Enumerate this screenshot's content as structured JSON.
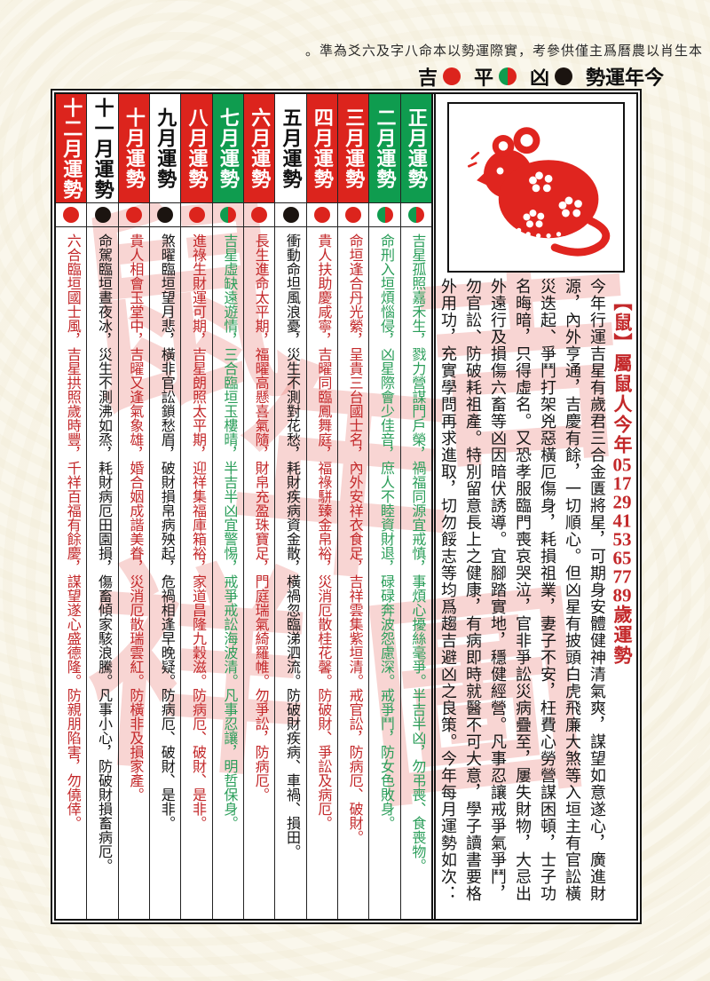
{
  "header": {
    "note": "。準為爻六及字八命本以勢運際實，考參供僅主爲曆農以肖生本",
    "legend": {
      "ji_label": "吉",
      "ping_label": "平",
      "xiong_label": "凶",
      "title": "勢運年今"
    }
  },
  "panel": {
    "title_parts": [
      "【鼠】屬鼠人今年",
      "05",
      "17",
      "29",
      "41",
      "53",
      "65",
      "77",
      "89",
      "歲運勢"
    ],
    "rat_image": "red-papercut-rat",
    "intro": "今年行運吉星有歲君三合金匱將星，可期身安體健神清氣爽，謀望如意遂心，廣進財源，內外亨通，吉慶有餘，一切順心。但凶星有披頭白虎飛廉大煞等入垣主有官訟橫災迭起、爭鬥打架兇惡橫厄傷身，耗損祖業，妻子不安，枉費心勞營謀困頓，士子功名晦暗，只得虛名。又恐孝服臨門喪哀哭泣，官非爭訟災病疊至，屢失財物，大忌出外遠行及損傷六畜等凶因暗伏誘導。宜腳踏實地，穩健經營。凡事忍讓戒爭氣爭鬥，勿官訟、防破耗祖產。特別留意長上之健康，有病即時就醫不可大意，學子讀書要格外用功，充實學問再求進取，切勿餒志等均爲趨吉避凶之良策。今年每月運勢如次："
  },
  "months": [
    {
      "name": "正月運勢",
      "type": "ping",
      "text": "吉星孤照嘉禾生，戮力營謀門戶榮，禍福同源宜戒慎，事煩心擾絲毫爭。半吉半凶，勿弔喪、食喪物。"
    },
    {
      "name": "二月運勢",
      "type": "ping",
      "text": "命刑入垣煩惱侵，凶星際會少佳音，庶人不睦資財退，碌碌奔波怨慮深。戒爭鬥，防女色敗身。"
    },
    {
      "name": "三月運勢",
      "type": "ji",
      "text": "命垣逢合丹光縈，呈貴三台國士名，內外安祥衣食足，吉祥雲集紫垣清。戒官訟，防病厄、破財。"
    },
    {
      "name": "四月運勢",
      "type": "ji",
      "text": "貴人扶助慶咸寧，吉曜同臨鳳舞庭，福祿駢臻金帛裕，災消厄散桂花馨。防破財、爭訟及病厄。"
    },
    {
      "name": "五月運勢",
      "type": "xiong",
      "text": "衝動命坦風浪憂，災生不測對花愁，耗財疾病資金散，橫禍忽臨涕泗流。防破財疾病、車禍、損田。"
    },
    {
      "name": "六月運勢",
      "type": "ji",
      "text": "長生進命太平期，福曜高懸喜氣隨，財帛充盈珠寶足，門庭瑞氣綺羅帷。勿爭訟，防病厄。"
    },
    {
      "name": "七月運勢",
      "type": "ping",
      "text": "吉星虛缺遠遊情，三合臨垣玉樓晴，半吉半凶宜警惕，戒爭戒訟海波清。凡事忍讓，明哲保身。"
    },
    {
      "name": "八月運勢",
      "type": "ji",
      "text": "進祿生財運可期，吉星朗照太平期，迎祥集福庫箱裕，家道昌隆九穀滋。防病厄、破財、是非。"
    },
    {
      "name": "九月運勢",
      "type": "xiong",
      "text": "煞曜臨垣望月悲，橫非官訟鎖愁眉，破財損帛病殃起，危禍相逢早晚疑。防病厄、破財、是非。"
    },
    {
      "name": "十月運勢",
      "type": "ji",
      "text": "貴人相會玉堂中，吉曜又逢氣象雄，婚合姻成諧美眷，災消厄散瑞雲紅。防橫非及損家產。"
    },
    {
      "name": "十一月運勢",
      "type": "xiong",
      "text": "命駕臨垣晝夜冰，災生不測沸如烝，耗財病厄田園損，傷畜傾家駭浪騰。凡事小心，防破財損畜病厄。"
    },
    {
      "name": "十二月運勢",
      "type": "ji",
      "text": "六合臨垣國士風，吉星拱照歲時豐，千祥百福有餘慶，謀望遂心盛德隆。防親朋陷害，勿僥倖。"
    }
  ],
  "watermark_chars": [
    "鼠",
    "年",
    "吉",
    "祥",
    "圖"
  ],
  "colors": {
    "red": "#dc241d",
    "green": "#0f9c4f",
    "text_red": "#c3282a",
    "text_green": "#2b9e5a",
    "watermark": "rgba(233,128,120,0.33)"
  }
}
